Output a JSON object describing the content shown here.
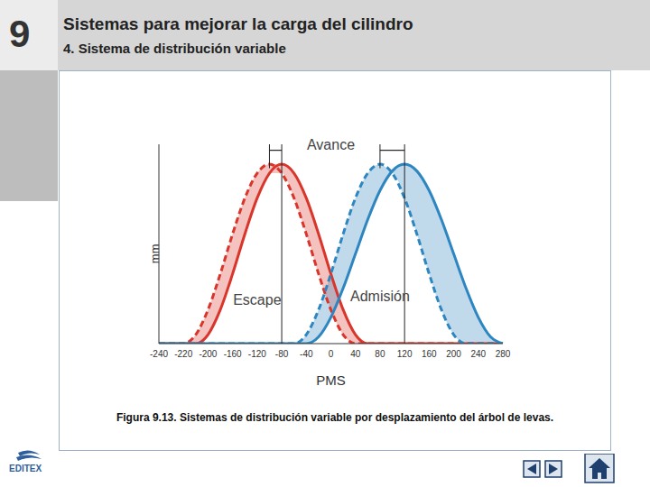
{
  "header": {
    "number": "9",
    "title": "Sistemas para mejorar la carga del cilindro",
    "subtitle": "4. Sistema de distribución variable"
  },
  "chart_data": {
    "type": "line",
    "x_label": "PMS",
    "y_label": "mm",
    "categories": [
      "-240",
      null,
      "-220",
      null,
      "-200",
      null,
      "-160",
      null,
      "-120",
      null,
      "-80",
      null,
      "-40",
      null,
      "0",
      null,
      "40",
      null,
      "80",
      null,
      "120",
      null,
      "160",
      null,
      "200",
      null,
      "240",
      null,
      "280"
    ],
    "series": [
      {
        "color": "#d9352b",
        "line_style": "dashed",
        "values": [
          0,
          0,
          0,
          0.45,
          1.7,
          3.5,
          5.5,
          7.3,
          8.55,
          9,
          8.55,
          7.3,
          5.5,
          3.5,
          1.7,
          0.45,
          0,
          0,
          0,
          0,
          0,
          0,
          0,
          0,
          0,
          0,
          0,
          0,
          0
        ]
      },
      {
        "color": "#d9352b",
        "line_style": "solid",
        "values": [
          0,
          0,
          0,
          0,
          0.45,
          1.7,
          3.5,
          5.5,
          7.3,
          8.55,
          9,
          8.55,
          7.3,
          5.5,
          3.5,
          1.7,
          0.45,
          0,
          0,
          0,
          0,
          0,
          0,
          0,
          0,
          0,
          0,
          0,
          0
        ]
      },
      {
        "color": "#2e86c1",
        "line_style": "dashed",
        "values": [
          0,
          0,
          0,
          0,
          0,
          0,
          0,
          0,
          0,
          0,
          0,
          0,
          0.45,
          1.7,
          3.5,
          5.5,
          7.3,
          8.55,
          9,
          8.55,
          7.3,
          5.5,
          3.5,
          1.7,
          0.45,
          0,
          0,
          0,
          0
        ]
      },
      {
        "color": "#2e86c1",
        "line_style": "solid",
        "values": [
          0,
          0,
          0,
          0,
          0,
          0,
          0,
          0,
          0,
          0,
          0,
          0,
          0,
          0.34,
          1.32,
          2.78,
          4.5,
          6.22,
          7.68,
          8.66,
          9,
          8.66,
          7.68,
          6.22,
          4.5,
          2.78,
          1.32,
          0.34,
          0
        ]
      }
    ],
    "ylim": [
      0,
      10
    ],
    "tick_labels": "x",
    "annotations": [
      "Avance",
      "Escape",
      "Admisión"
    ]
  },
  "caption": "Figura 9.13. Sistemas de distribución variable por desplazamiento del árbol de levas.",
  "footer": {
    "logo": "EDITEX"
  }
}
